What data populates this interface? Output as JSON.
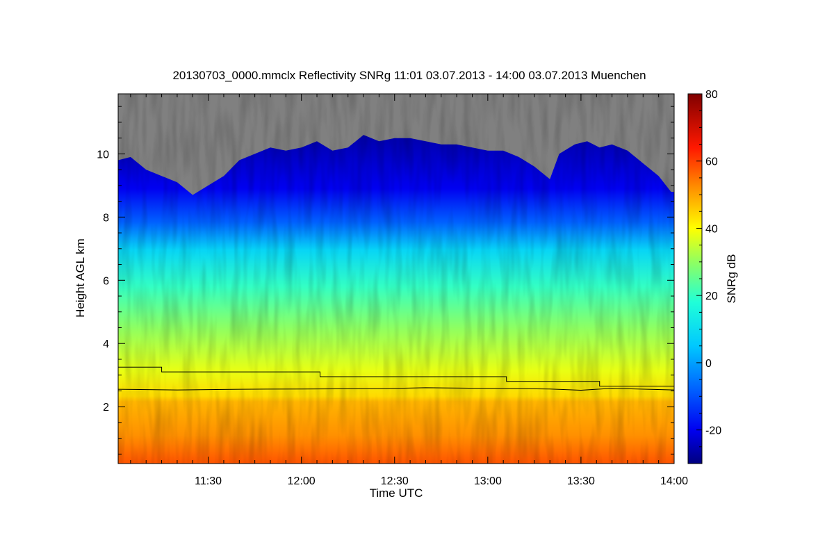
{
  "chart_data": {
    "type": "heatmap",
    "title": "20130703_0000.mmclx Reflectivity SNRg   11:01 03.07.2013 - 14:00 03.07.2013 Muenchen",
    "xlabel": "Time UTC",
    "ylabel": "Height AGL km",
    "colorbar_label": "SNRg dB",
    "x_range_minutes_utc": [
      661,
      840
    ],
    "y_range_km": [
      0.2,
      11.9
    ],
    "x_ticks": [
      {
        "minute": 690,
        "label": "11:30"
      },
      {
        "minute": 720,
        "label": "12:00"
      },
      {
        "minute": 750,
        "label": "12:30"
      },
      {
        "minute": 780,
        "label": "13:00"
      },
      {
        "minute": 810,
        "label": "13:30"
      },
      {
        "minute": 840,
        "label": "14:00"
      }
    ],
    "y_ticks": [
      {
        "value": 2,
        "label": "2"
      },
      {
        "value": 4,
        "label": "4"
      },
      {
        "value": 6,
        "label": "6"
      },
      {
        "value": 8,
        "label": "8"
      },
      {
        "value": 10,
        "label": "10"
      }
    ],
    "colorbar_range_db": [
      -30,
      80
    ],
    "colorbar_ticks": [
      {
        "value": -20,
        "label": "-20"
      },
      {
        "value": 0,
        "label": "0"
      },
      {
        "value": 20,
        "label": "20"
      },
      {
        "value": 40,
        "label": "40"
      },
      {
        "value": 60,
        "label": "60"
      },
      {
        "value": 80,
        "label": "80"
      }
    ],
    "colormap": [
      {
        "value": -30,
        "color": "#00007f"
      },
      {
        "value": -20,
        "color": "#0000f0"
      },
      {
        "value": -8,
        "color": "#0060ff"
      },
      {
        "value": 5,
        "color": "#00c8ff"
      },
      {
        "value": 18,
        "color": "#20ffd8"
      },
      {
        "value": 30,
        "color": "#90ff60"
      },
      {
        "value": 40,
        "color": "#ffff00"
      },
      {
        "value": 52,
        "color": "#ff9000"
      },
      {
        "value": 64,
        "color": "#ff1800"
      },
      {
        "value": 80,
        "color": "#800000"
      }
    ],
    "no_signal_color": "#808080",
    "cloud_top_km": [
      {
        "minute": 661,
        "top": 9.8
      },
      {
        "minute": 665,
        "top": 9.9
      },
      {
        "minute": 670,
        "top": 9.5
      },
      {
        "minute": 675,
        "top": 9.3
      },
      {
        "minute": 680,
        "top": 9.1
      },
      {
        "minute": 685,
        "top": 8.7
      },
      {
        "minute": 690,
        "top": 9.0
      },
      {
        "minute": 695,
        "top": 9.3
      },
      {
        "minute": 700,
        "top": 9.8
      },
      {
        "minute": 705,
        "top": 10.0
      },
      {
        "minute": 710,
        "top": 10.2
      },
      {
        "minute": 715,
        "top": 10.1
      },
      {
        "minute": 720,
        "top": 10.2
      },
      {
        "minute": 725,
        "top": 10.4
      },
      {
        "minute": 730,
        "top": 10.1
      },
      {
        "minute": 735,
        "top": 10.2
      },
      {
        "minute": 740,
        "top": 10.6
      },
      {
        "minute": 745,
        "top": 10.4
      },
      {
        "minute": 750,
        "top": 10.5
      },
      {
        "minute": 755,
        "top": 10.5
      },
      {
        "minute": 760,
        "top": 10.4
      },
      {
        "minute": 765,
        "top": 10.3
      },
      {
        "minute": 770,
        "top": 10.3
      },
      {
        "minute": 775,
        "top": 10.2
      },
      {
        "minute": 780,
        "top": 10.1
      },
      {
        "minute": 785,
        "top": 10.1
      },
      {
        "minute": 790,
        "top": 9.9
      },
      {
        "minute": 795,
        "top": 9.6
      },
      {
        "minute": 800,
        "top": 9.2
      },
      {
        "minute": 803,
        "top": 10.0
      },
      {
        "minute": 808,
        "top": 10.3
      },
      {
        "minute": 812,
        "top": 10.4
      },
      {
        "minute": 816,
        "top": 10.2
      },
      {
        "minute": 820,
        "top": 10.3
      },
      {
        "minute": 825,
        "top": 10.1
      },
      {
        "minute": 830,
        "top": 9.7
      },
      {
        "minute": 835,
        "top": 9.3
      },
      {
        "minute": 839,
        "top": 8.8
      }
    ],
    "melting_layer_km": [
      {
        "minute": 661,
        "height": 2.55
      },
      {
        "minute": 680,
        "height": 2.53
      },
      {
        "minute": 700,
        "height": 2.55
      },
      {
        "minute": 720,
        "height": 2.56
      },
      {
        "minute": 745,
        "height": 2.57
      },
      {
        "minute": 760,
        "height": 2.6
      },
      {
        "minute": 780,
        "height": 2.58
      },
      {
        "minute": 800,
        "height": 2.56
      },
      {
        "minute": 810,
        "height": 2.52
      },
      {
        "minute": 820,
        "height": 2.58
      },
      {
        "minute": 840,
        "height": 2.53
      }
    ],
    "step_line_km": [
      {
        "from": 661,
        "to": 675,
        "height": 3.25
      },
      {
        "from": 675,
        "to": 726,
        "height": 3.1
      },
      {
        "from": 726,
        "to": 786,
        "height": 2.95
      },
      {
        "from": 786,
        "to": 816,
        "height": 2.8
      },
      {
        "from": 816,
        "to": 840,
        "height": 2.65
      }
    ]
  }
}
